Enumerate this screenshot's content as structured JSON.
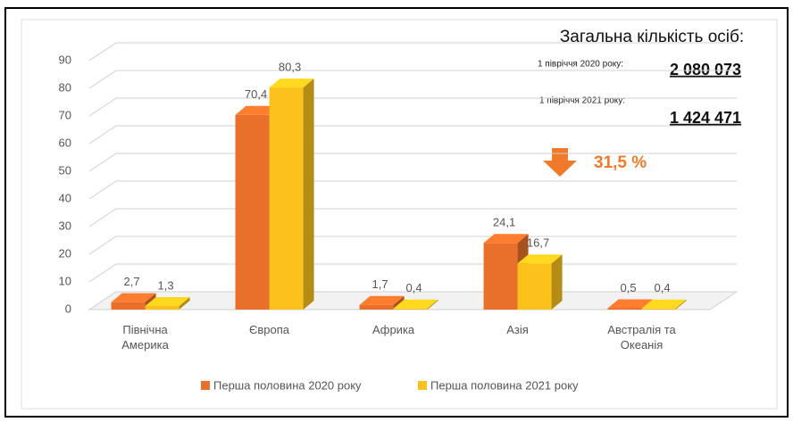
{
  "chart_data": {
    "type": "bar3d",
    "categories": [
      "Північна Америка",
      "Європа",
      "Африка",
      "Азія",
      "Австралія та Океанія"
    ],
    "series": [
      {
        "name": "Перша половина 2020 року",
        "color": "#e8702a",
        "values": [
          2.7,
          70.4,
          1.7,
          24.1,
          0.5
        ],
        "value_labels": [
          "2,7",
          "70,4",
          "1,7",
          "24,1",
          "0,5"
        ]
      },
      {
        "name": "Перша половина 2021 року",
        "color": "#fbc21c",
        "values": [
          1.3,
          80.3,
          0.4,
          16.7,
          0.4
        ],
        "value_labels": [
          "1,3",
          "80,3",
          "0,4",
          "16,7",
          "0,4"
        ]
      }
    ],
    "ylim": [
      0,
      90
    ],
    "yticks": [
      0,
      10,
      20,
      30,
      40,
      50,
      60,
      70,
      80,
      90
    ],
    "grid": true,
    "legend": "bottom",
    "annotations": {
      "total_title": "Загальна кількість осіб:",
      "label_2020": "1 півріччя 2020 року:",
      "total_2020": "2 080 073",
      "label_2021": "1 півріччя 2021 року:",
      "total_2021": "1 424 471",
      "decrease": "31,5 %"
    }
  }
}
